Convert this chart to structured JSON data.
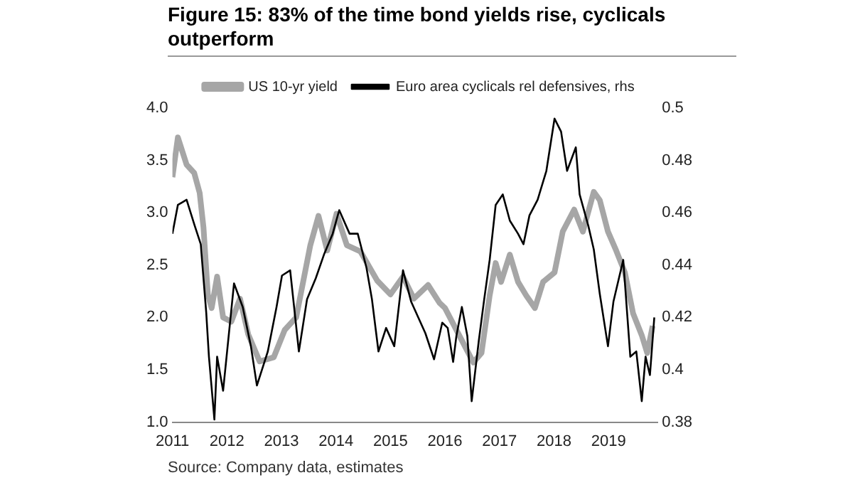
{
  "chart_data": {
    "type": "line",
    "title": "Figure 15: 83% of the time bond yields rise, cyclicals outperform",
    "annotations": [
      "Source: Company data, estimates"
    ],
    "xlim": [
      2011,
      2019.9
    ],
    "xticks": [
      2011,
      2012,
      2013,
      2014,
      2015,
      2016,
      2017,
      2018,
      2019
    ],
    "ylim": [
      1,
      4
    ],
    "yticks": [
      {
        "value": 1,
        "label": "1.0"
      },
      {
        "value": 1.5,
        "label": "1.5"
      },
      {
        "value": 2,
        "label": "2.0"
      },
      {
        "value": 2.5,
        "label": "2.5"
      },
      {
        "value": 3,
        "label": "3.0"
      },
      {
        "value": 3.5,
        "label": "3.5"
      },
      {
        "value": 4,
        "label": "4.0"
      }
    ],
    "y2lim": [
      0.38,
      0.5
    ],
    "y2ticks": [
      0.38,
      0.4,
      0.42,
      0.44,
      0.46,
      0.48,
      0.5
    ],
    "grid": false,
    "legend": "top",
    "marker": "none",
    "line_style": "solid",
    "series": [
      {
        "name": "US 10-yr yield",
        "color": "#a6a6a6",
        "x": [
          2011.0,
          2011.1,
          2011.26,
          2011.4,
          2011.5,
          2011.57,
          2011.65,
          2011.72,
          2011.82,
          2011.93,
          2012.08,
          2012.24,
          2012.39,
          2012.6,
          2012.86,
          2013.06,
          2013.27,
          2013.53,
          2013.68,
          2013.84,
          2014.01,
          2014.2,
          2014.45,
          2014.76,
          2015.0,
          2015.23,
          2015.43,
          2015.69,
          2015.9,
          2016.0,
          2016.26,
          2016.52,
          2016.67,
          2016.82,
          2016.93,
          2017.03,
          2017.19,
          2017.34,
          2017.49,
          2017.65,
          2017.8,
          2018.01,
          2018.16,
          2018.37,
          2018.53,
          2018.73,
          2018.84,
          2018.99,
          2019.14,
          2019.3,
          2019.45,
          2019.61,
          2019.71,
          2019.81
        ],
        "values": [
          3.34,
          3.72,
          3.46,
          3.38,
          3.19,
          2.86,
          2.22,
          2.09,
          2.39,
          2.0,
          1.96,
          2.18,
          1.84,
          1.58,
          1.62,
          1.88,
          2.0,
          2.69,
          2.97,
          2.64,
          2.99,
          2.69,
          2.63,
          2.35,
          2.22,
          2.39,
          2.18,
          2.31,
          2.14,
          2.09,
          1.83,
          1.57,
          1.66,
          2.21,
          2.52,
          2.34,
          2.6,
          2.34,
          2.21,
          2.09,
          2.34,
          2.43,
          2.82,
          3.03,
          2.82,
          3.2,
          3.12,
          2.82,
          2.64,
          2.43,
          2.04,
          1.83,
          1.66,
          1.92
        ]
      },
      {
        "name": "Euro area cyclicals rel defensives, rhs",
        "color": "#000000",
        "axis": "y2",
        "x": [
          2011.0,
          2011.1,
          2011.26,
          2011.41,
          2011.52,
          2011.62,
          2011.67,
          2011.77,
          2011.82,
          2011.93,
          2012.13,
          2012.29,
          2012.44,
          2012.55,
          2012.75,
          2012.91,
          2013.01,
          2013.16,
          2013.32,
          2013.47,
          2013.63,
          2013.78,
          2013.94,
          2014.06,
          2014.25,
          2014.4,
          2014.56,
          2014.66,
          2014.78,
          2014.92,
          2015.07,
          2015.23,
          2015.38,
          2015.64,
          2015.8,
          2015.95,
          2016.05,
          2016.15,
          2016.21,
          2016.31,
          2016.41,
          2016.49,
          2016.62,
          2016.72,
          2016.82,
          2016.93,
          2017.06,
          2017.19,
          2017.34,
          2017.44,
          2017.55,
          2017.7,
          2017.86,
          2018.01,
          2018.13,
          2018.24,
          2018.4,
          2018.47,
          2018.63,
          2018.73,
          2018.84,
          2018.99,
          2019.09,
          2019.27,
          2019.4,
          2019.51,
          2019.61,
          2019.68,
          2019.76,
          2019.84
        ],
        "values": [
          0.452,
          0.463,
          0.465,
          0.455,
          0.448,
          0.422,
          0.405,
          0.381,
          0.405,
          0.392,
          0.433,
          0.424,
          0.409,
          0.394,
          0.407,
          0.424,
          0.436,
          0.438,
          0.407,
          0.427,
          0.435,
          0.444,
          0.452,
          0.461,
          0.452,
          0.452,
          0.439,
          0.427,
          0.407,
          0.416,
          0.409,
          0.438,
          0.426,
          0.414,
          0.404,
          0.418,
          0.416,
          0.403,
          0.413,
          0.424,
          0.413,
          0.388,
          0.411,
          0.427,
          0.442,
          0.463,
          0.467,
          0.457,
          0.452,
          0.448,
          0.459,
          0.465,
          0.476,
          0.496,
          0.491,
          0.476,
          0.485,
          0.467,
          0.455,
          0.446,
          0.429,
          0.409,
          0.426,
          0.442,
          0.405,
          0.407,
          0.388,
          0.405,
          0.398,
          0.42
        ]
      }
    ]
  }
}
